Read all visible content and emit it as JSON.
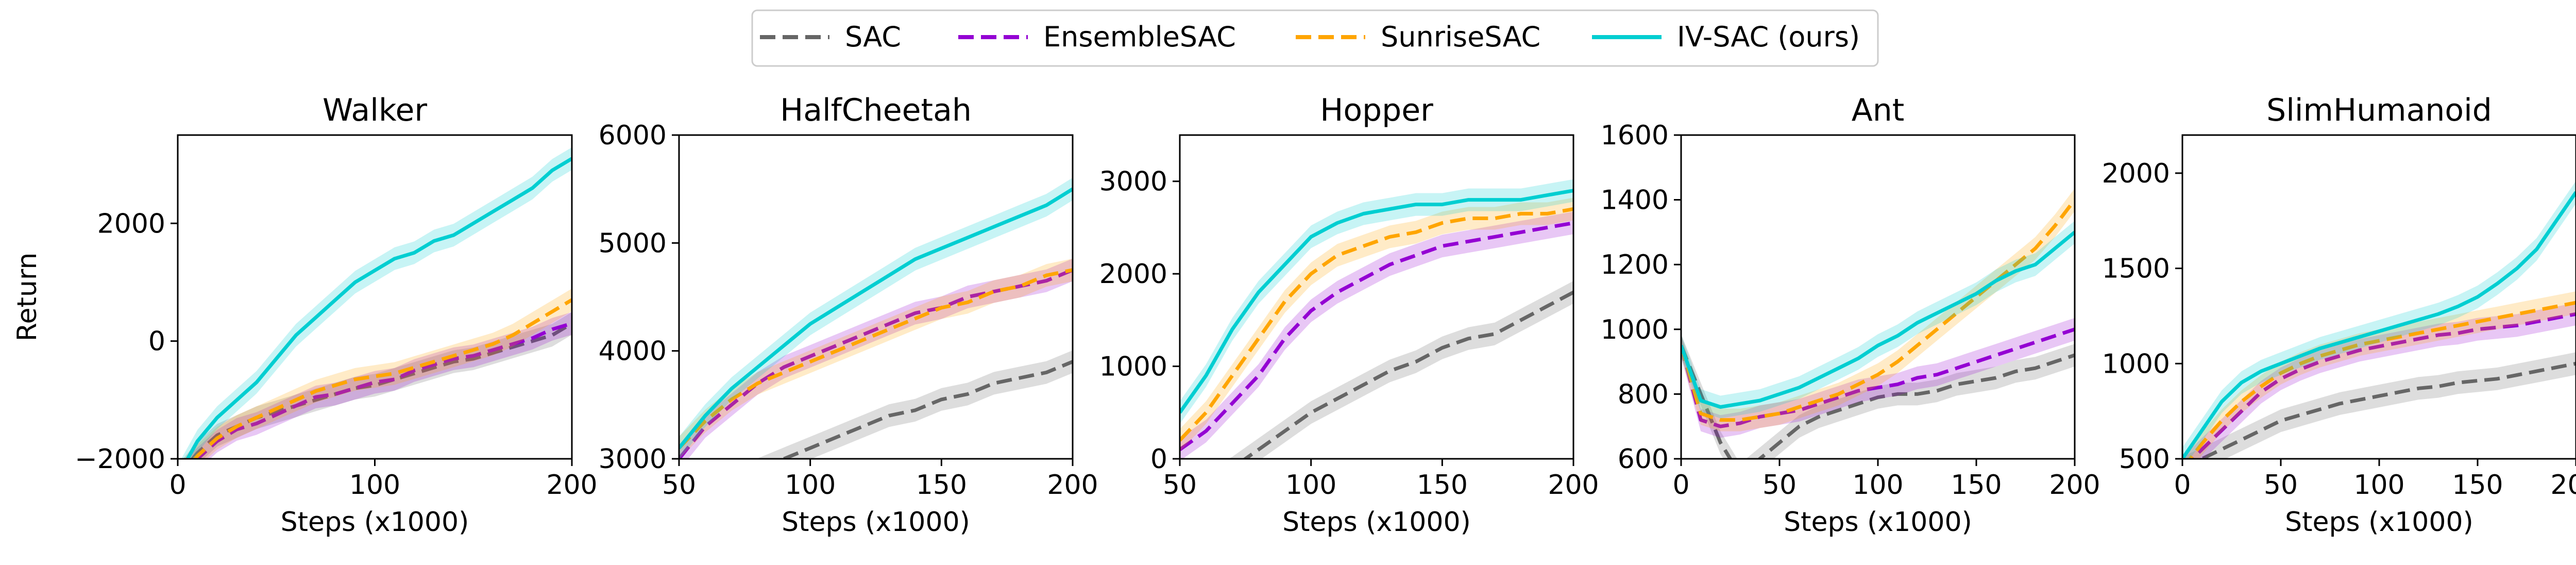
{
  "legend": {
    "placement": "top-center",
    "entries": [
      {
        "label": "SAC",
        "color": "#666666",
        "dash": "dashed"
      },
      {
        "label": "EnsembleSAC",
        "color": "#9400D3",
        "dash": "dashed"
      },
      {
        "label": "SunriseSAC",
        "color": "#FFA500",
        "dash": "dashed"
      },
      {
        "label": "IV-SAC (ours)",
        "color": "#00CED1",
        "dash": "solid"
      }
    ]
  },
  "chart_data": [
    {
      "type": "line",
      "title": "Walker",
      "xlabel": "Steps (x1000)",
      "ylabel": "Return",
      "xlim": [
        0,
        200
      ],
      "ylim": [
        -2000,
        3500
      ],
      "xticks": [
        0,
        100,
        200
      ],
      "yticks": [
        -2000,
        0,
        2000
      ],
      "ytick_labels": [
        "−2000",
        "0",
        "2000"
      ],
      "grid": false,
      "x": [
        0,
        10,
        20,
        30,
        40,
        50,
        60,
        70,
        80,
        90,
        100,
        110,
        120,
        130,
        140,
        150,
        160,
        170,
        180,
        190,
        200
      ],
      "series": [
        {
          "name": "SAC",
          "values": [
            -2300,
            -1900,
            -1600,
            -1450,
            -1300,
            -1200,
            -1100,
            -1000,
            -900,
            -800,
            -750,
            -650,
            -550,
            -450,
            -350,
            -300,
            -200,
            -100,
            0,
            100,
            300
          ]
        },
        {
          "name": "EnsembleSAC",
          "values": [
            -2300,
            -2000,
            -1700,
            -1500,
            -1400,
            -1250,
            -1100,
            -950,
            -900,
            -800,
            -700,
            -650,
            -500,
            -400,
            -300,
            -250,
            -150,
            -50,
            50,
            200,
            300
          ]
        },
        {
          "name": "SunriseSAC",
          "values": [
            -2300,
            -1950,
            -1650,
            -1450,
            -1300,
            -1150,
            -1000,
            -850,
            -750,
            -650,
            -600,
            -550,
            -450,
            -350,
            -250,
            -150,
            -50,
            100,
            300,
            500,
            700
          ]
        },
        {
          "name": "IV-SAC (ours)",
          "values": [
            -2300,
            -1700,
            -1300,
            -1000,
            -700,
            -300,
            100,
            400,
            700,
            1000,
            1200,
            1400,
            1500,
            1700,
            1800,
            2000,
            2200,
            2400,
            2600,
            2900,
            3100
          ]
        }
      ]
    },
    {
      "type": "line",
      "title": "HalfCheetah",
      "xlabel": "Steps (x1000)",
      "ylabel": "",
      "xlim": [
        50,
        200
      ],
      "ylim": [
        3000,
        6000
      ],
      "xticks": [
        50,
        100,
        150,
        200
      ],
      "yticks": [
        3000,
        4000,
        5000,
        6000
      ],
      "ytick_labels": [
        "3000",
        "4000",
        "5000",
        "6000"
      ],
      "grid": false,
      "x": [
        50,
        60,
        70,
        80,
        90,
        100,
        110,
        120,
        130,
        140,
        150,
        160,
        170,
        180,
        190,
        200
      ],
      "series": [
        {
          "name": "SAC",
          "values": [
            2600,
            2700,
            2800,
            2900,
            3000,
            3100,
            3200,
            3300,
            3400,
            3450,
            3550,
            3600,
            3700,
            3750,
            3800,
            3900
          ]
        },
        {
          "name": "EnsembleSAC",
          "values": [
            3000,
            3300,
            3500,
            3700,
            3850,
            3950,
            4050,
            4150,
            4250,
            4350,
            4400,
            4500,
            4550,
            4600,
            4650,
            4750
          ]
        },
        {
          "name": "SunriseSAC",
          "values": [
            3100,
            3350,
            3550,
            3700,
            3800,
            3900,
            4000,
            4100,
            4200,
            4300,
            4400,
            4450,
            4550,
            4600,
            4700,
            4750
          ]
        },
        {
          "name": "IV-SAC (ours)",
          "values": [
            3100,
            3400,
            3650,
            3850,
            4050,
            4250,
            4400,
            4550,
            4700,
            4850,
            4950,
            5050,
            5150,
            5250,
            5350,
            5500
          ]
        }
      ]
    },
    {
      "type": "line",
      "title": "Hopper",
      "xlabel": "Steps (x1000)",
      "ylabel": "",
      "xlim": [
        50,
        200
      ],
      "ylim": [
        0,
        3500
      ],
      "xticks": [
        50,
        100,
        150,
        200
      ],
      "yticks": [
        0,
        1000,
        2000,
        3000
      ],
      "ytick_labels": [
        "0",
        "1000",
        "2000",
        "3000"
      ],
      "grid": false,
      "x": [
        50,
        60,
        70,
        80,
        90,
        100,
        110,
        120,
        130,
        140,
        150,
        160,
        170,
        180,
        190,
        200
      ],
      "series": [
        {
          "name": "SAC",
          "values": [
            -400,
            -250,
            -100,
            100,
            300,
            500,
            650,
            800,
            950,
            1050,
            1200,
            1300,
            1350,
            1500,
            1650,
            1800
          ]
        },
        {
          "name": "EnsembleSAC",
          "values": [
            100,
            300,
            600,
            900,
            1300,
            1600,
            1800,
            1950,
            2100,
            2200,
            2300,
            2350,
            2400,
            2450,
            2500,
            2550
          ]
        },
        {
          "name": "SunriseSAC",
          "values": [
            200,
            500,
            900,
            1300,
            1700,
            2000,
            2200,
            2300,
            2400,
            2450,
            2550,
            2600,
            2600,
            2650,
            2650,
            2700
          ]
        },
        {
          "name": "IV-SAC (ours)",
          "values": [
            500,
            900,
            1400,
            1800,
            2100,
            2400,
            2550,
            2650,
            2700,
            2750,
            2750,
            2800,
            2800,
            2800,
            2850,
            2900
          ]
        }
      ]
    },
    {
      "type": "line",
      "title": "Ant",
      "xlabel": "Steps (x1000)",
      "ylabel": "",
      "xlim": [
        0,
        200
      ],
      "ylim": [
        600,
        1600
      ],
      "xticks": [
        0,
        50,
        100,
        150,
        200
      ],
      "yticks": [
        600,
        800,
        1000,
        1200,
        1400,
        1600
      ],
      "ytick_labels": [
        "600",
        "800",
        "1000",
        "1200",
        "1400",
        "1600"
      ],
      "grid": false,
      "x": [
        0,
        10,
        20,
        30,
        40,
        50,
        60,
        70,
        80,
        90,
        100,
        110,
        120,
        130,
        140,
        150,
        160,
        170,
        180,
        190,
        200
      ],
      "series": [
        {
          "name": "SAC",
          "values": [
            950,
            800,
            650,
            550,
            600,
            650,
            700,
            730,
            750,
            770,
            790,
            800,
            800,
            810,
            830,
            840,
            850,
            870,
            880,
            900,
            920
          ]
        },
        {
          "name": "EnsembleSAC",
          "values": [
            950,
            720,
            700,
            710,
            730,
            740,
            750,
            770,
            790,
            810,
            820,
            830,
            850,
            860,
            880,
            900,
            920,
            940,
            960,
            980,
            1000
          ]
        },
        {
          "name": "SunriseSAC",
          "values": [
            950,
            740,
            720,
            720,
            730,
            740,
            760,
            780,
            800,
            830,
            860,
            900,
            950,
            1000,
            1050,
            1100,
            1150,
            1200,
            1250,
            1320,
            1400
          ]
        },
        {
          "name": "IV-SAC (ours)",
          "values": [
            950,
            780,
            760,
            770,
            780,
            800,
            820,
            850,
            880,
            910,
            950,
            980,
            1020,
            1050,
            1080,
            1110,
            1150,
            1180,
            1200,
            1250,
            1300
          ]
        }
      ]
    },
    {
      "type": "line",
      "title": "SlimHumanoid",
      "xlabel": "Steps (x1000)",
      "ylabel": "",
      "xlim": [
        0,
        200
      ],
      "ylim": [
        500,
        2200
      ],
      "xticks": [
        0,
        50,
        100,
        150,
        200
      ],
      "yticks": [
        500,
        1000,
        1500,
        2000
      ],
      "ytick_labels": [
        "500",
        "1000",
        "1500",
        "2000"
      ],
      "grid": false,
      "x": [
        0,
        10,
        20,
        30,
        40,
        50,
        60,
        70,
        80,
        90,
        100,
        110,
        120,
        130,
        140,
        150,
        160,
        170,
        180,
        190,
        200
      ],
      "series": [
        {
          "name": "SAC",
          "values": [
            450,
            500,
            550,
            600,
            650,
            700,
            730,
            760,
            790,
            810,
            830,
            850,
            870,
            880,
            900,
            910,
            920,
            940,
            960,
            980,
            1000
          ]
        },
        {
          "name": "EnsembleSAC",
          "values": [
            450,
            550,
            650,
            750,
            850,
            920,
            970,
            1010,
            1040,
            1070,
            1090,
            1110,
            1130,
            1150,
            1160,
            1180,
            1190,
            1200,
            1220,
            1240,
            1260
          ]
        },
        {
          "name": "SunriseSAC",
          "values": [
            450,
            580,
            700,
            800,
            880,
            950,
            1000,
            1040,
            1070,
            1100,
            1120,
            1140,
            1160,
            1180,
            1200,
            1220,
            1240,
            1260,
            1280,
            1300,
            1320
          ]
        },
        {
          "name": "IV-SAC (ours)",
          "values": [
            500,
            650,
            800,
            900,
            960,
            1000,
            1040,
            1080,
            1110,
            1140,
            1170,
            1200,
            1230,
            1260,
            1300,
            1350,
            1420,
            1500,
            1600,
            1750,
            1900
          ]
        }
      ]
    }
  ]
}
